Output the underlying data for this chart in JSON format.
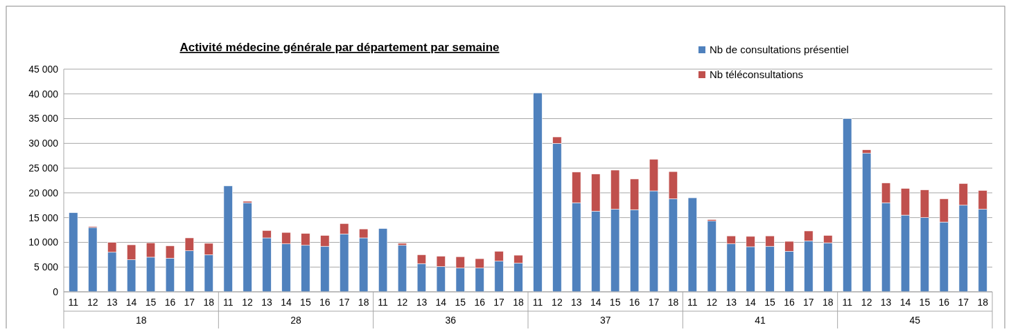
{
  "chart_data": {
    "type": "bar",
    "stacked": true,
    "title": "Activité médecine générale par département par semaine",
    "categories": [
      "11",
      "12",
      "13",
      "14",
      "15",
      "16",
      "17",
      "18",
      "11",
      "12",
      "13",
      "14",
      "15",
      "16",
      "17",
      "18",
      "11",
      "12",
      "13",
      "14",
      "15",
      "16",
      "17",
      "18",
      "11",
      "12",
      "13",
      "14",
      "15",
      "16",
      "17",
      "18",
      "11",
      "12",
      "13",
      "14",
      "15",
      "16",
      "17",
      "18",
      "11",
      "12",
      "13",
      "14",
      "15",
      "16",
      "17",
      "18"
    ],
    "annotations": [
      "18",
      "28",
      "36",
      "37",
      "41",
      "45"
    ],
    "series": [
      {
        "name": "Nb de consultations présentiel",
        "color": "#4f81bd",
        "values": [
          16000,
          13000,
          8000,
          6500,
          7000,
          6800,
          8300,
          7500,
          21400,
          18000,
          10900,
          9700,
          9400,
          9200,
          11700,
          10900,
          12800,
          9400,
          5700,
          5100,
          4800,
          4800,
          6200,
          5800,
          40200,
          30000,
          18000,
          16300,
          16700,
          16600,
          20400,
          18800,
          19000,
          14300,
          9700,
          9100,
          9200,
          8200,
          10300,
          9900,
          35000,
          28000,
          18000,
          15500,
          15000,
          14100,
          17500,
          16700
        ]
      },
      {
        "name": "Nb téléconsultations",
        "color": "#c0504d",
        "values": [
          0,
          200,
          2000,
          3000,
          2900,
          2500,
          2600,
          2300,
          0,
          300,
          1500,
          2300,
          2400,
          2200,
          2100,
          1800,
          0,
          400,
          1800,
          2100,
          2300,
          1900,
          2000,
          1600,
          0,
          1300,
          6200,
          7500,
          7900,
          6200,
          6400,
          5500,
          0,
          300,
          1600,
          2100,
          2100,
          2000,
          2000,
          1500,
          0,
          700,
          4000,
          5400,
          5600,
          4700,
          4400,
          3800
        ]
      }
    ],
    "ylim": [
      0,
      45000
    ],
    "yticks": [
      0,
      {
        "value": 5000,
        "label": "5 000"
      },
      {
        "value": 10000,
        "label": "10 000"
      },
      {
        "value": 15000,
        "label": "15 000"
      },
      {
        "value": 20000,
        "label": "20 000"
      },
      {
        "value": 25000,
        "label": "25 000"
      },
      {
        "value": 30000,
        "label": "30 000"
      },
      {
        "value": 35000,
        "label": "35 000"
      },
      {
        "value": 40000,
        "label": "40 000"
      },
      {
        "value": 45000,
        "label": "45 000"
      }
    ],
    "grid": "y",
    "legend": "top right"
  }
}
